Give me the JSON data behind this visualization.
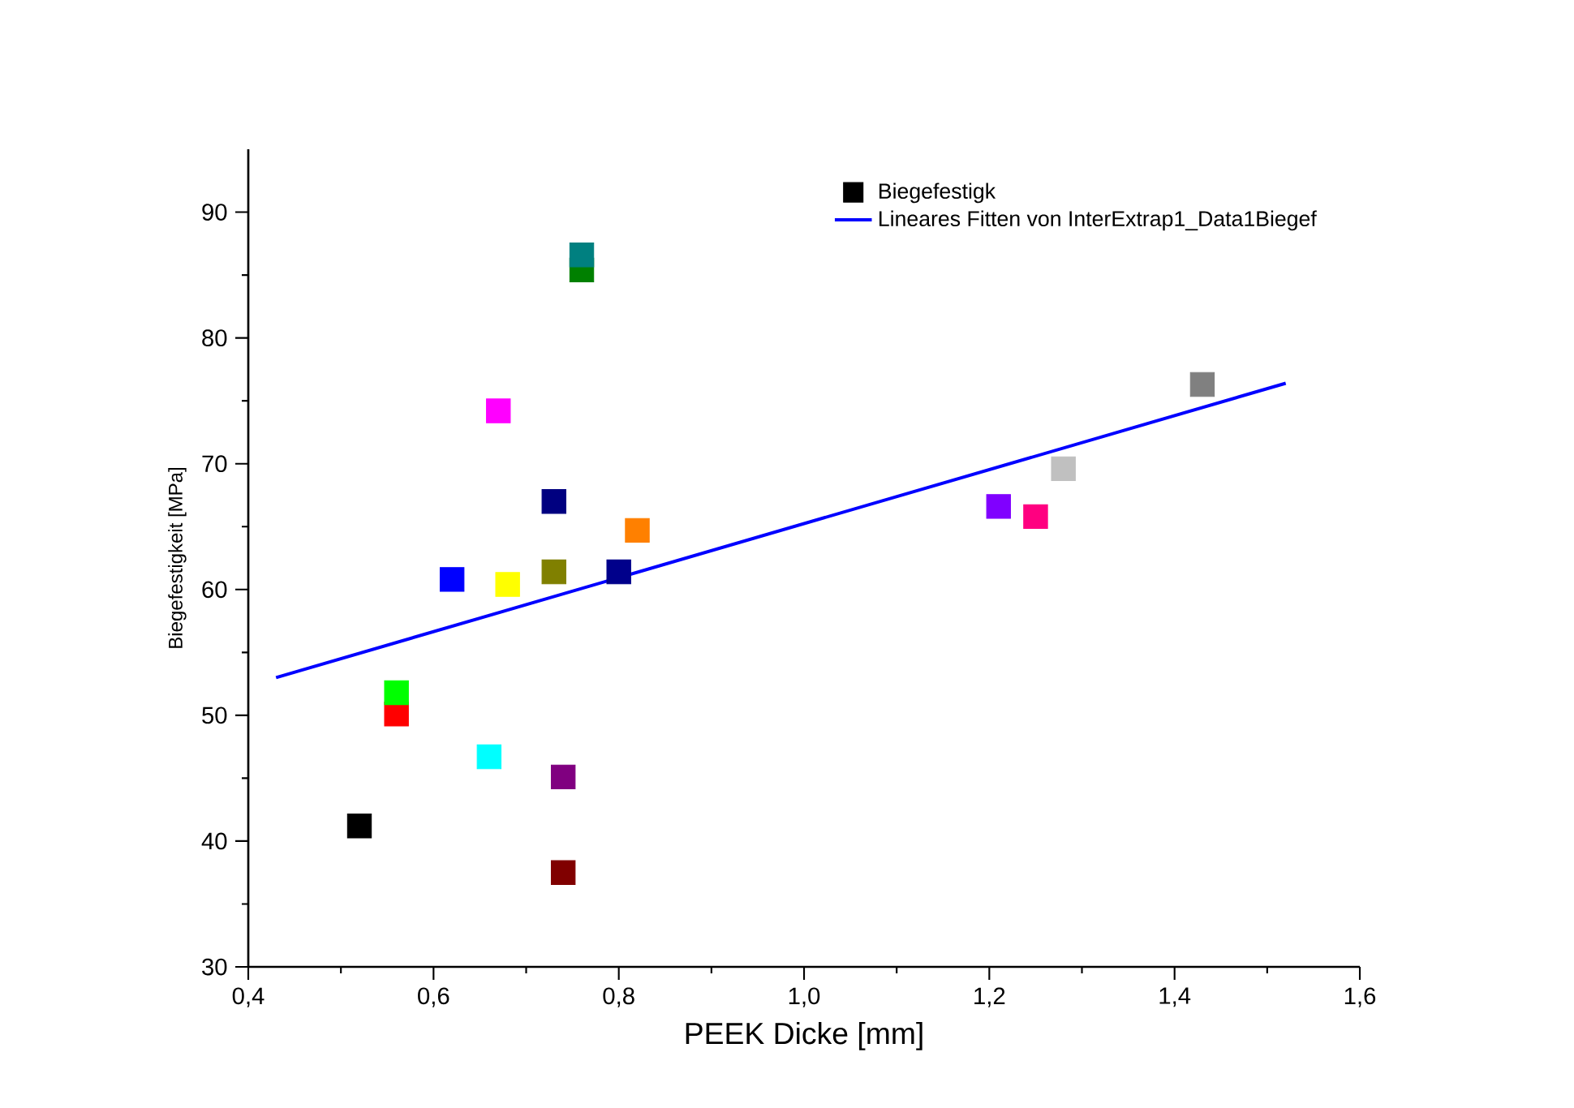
{
  "chart_data": {
    "type": "scatter",
    "xlabel": "PEEK Dicke [mm]",
    "ylabel": "Biegefestigkeit [MPa]",
    "xlim": [
      0.4,
      1.6
    ],
    "ylim": [
      30,
      95
    ],
    "xticks": [
      {
        "value": 0.4,
        "label": "0,4"
      },
      {
        "value": 0.6,
        "label": "0,6"
      },
      {
        "value": 0.8,
        "label": "0,8"
      },
      {
        "value": 1.0,
        "label": "1,0"
      },
      {
        "value": 1.2,
        "label": "1,2"
      },
      {
        "value": 1.4,
        "label": "1,4"
      },
      {
        "value": 1.6,
        "label": "1,6"
      }
    ],
    "yticks": [
      30,
      40,
      50,
      60,
      70,
      80,
      90
    ],
    "grid": false,
    "legend": "top right",
    "series": [
      {
        "name": "Biegefestigk",
        "marker": "square",
        "color": "#000000",
        "x": [
          0.52,
          0.56,
          0.56,
          0.66,
          0.62,
          0.68,
          0.67,
          0.73,
          0.73,
          0.8,
          0.82,
          0.76,
          0.76,
          0.74,
          0.74,
          1.43,
          1.28,
          1.21,
          1.25
        ],
        "values": [
          41.2,
          50.1,
          51.8,
          46.7,
          60.8,
          60.4,
          74.2,
          67.0,
          61.4,
          61.4,
          64.7,
          85.4,
          86.6,
          45.1,
          37.5,
          76.3,
          69.6,
          66.6,
          65.8
        ],
        "colors": [
          "#000000",
          "#ff0000",
          "#00ff00",
          "#00ffff",
          "#0000ff",
          "#ffff00",
          "#ff00ff",
          "#000080",
          "#808000",
          "#00008b",
          "#ff8000",
          "#008000",
          "#008080",
          "#800080",
          "#800000",
          "#808080",
          "#c0c0c0",
          "#8000ff",
          "#ff0080"
        ]
      },
      {
        "name": "Lineares Fitten von InterExtrap1_Data1Biegef",
        "type": "line",
        "marker": "none",
        "color": "#0000ff",
        "x": [
          0.43,
          1.52
        ],
        "values": [
          53.0,
          76.4
        ]
      }
    ]
  }
}
